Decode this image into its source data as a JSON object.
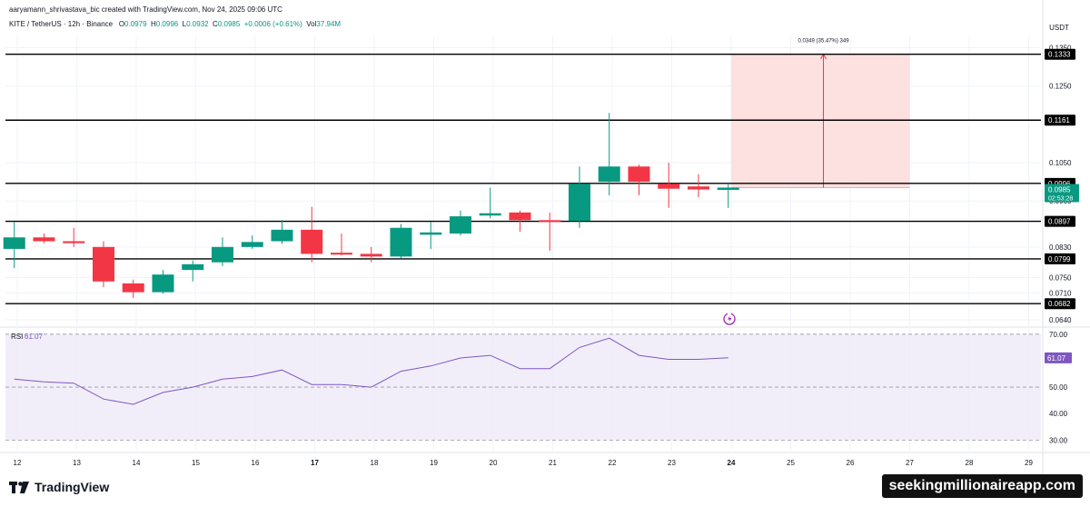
{
  "header": {
    "creator": "aaryamann_shrivastava_bic created with TradingView.com, Nov 24, 2025 09:06 UTC",
    "symbol": "KITE / TetherUS · 12h · Binance",
    "o_label": "O",
    "o_value": "0.0979",
    "h_label": "H",
    "h_value": "0.0996",
    "l_label": "L",
    "l_value": "0.0932",
    "c_label": "C",
    "c_value": "0.0985",
    "change": "+0.0006 (+0.61%)",
    "vol_label": "Vol",
    "vol_value": "37.94M"
  },
  "currency": "USDT",
  "branding": {
    "logo_text": "TradingView",
    "watermark": "seekingmillionaireapp.com"
  },
  "colors": {
    "up": "#089981",
    "down": "#f23645",
    "rsi": "#7e57c2",
    "projection": "#fde0e0"
  },
  "chart_data": {
    "type": "candlestick",
    "price_axis_ticks": [
      "0.1350",
      "0.1250",
      "0.1050",
      "0.0950",
      "0.0830",
      "0.0750",
      "0.0710",
      "0.0640"
    ],
    "price_axis_tick_values": [
      0.135,
      0.125,
      0.105,
      0.095,
      0.083,
      0.075,
      0.071,
      0.064
    ],
    "ylim": [
      0.0628,
      0.1375
    ],
    "x_tick_labels": [
      "12",
      "13",
      "14",
      "15",
      "16",
      "17",
      "18",
      "19",
      "20",
      "21",
      "22",
      "23",
      "24",
      "25",
      "26",
      "27",
      "28",
      "29"
    ],
    "bold_x_ticks": [
      "17",
      "24"
    ],
    "candles": [
      {
        "day": 11.95,
        "o": 0.0825,
        "h": 0.0895,
        "l": 0.0775,
        "c": 0.0855
      },
      {
        "day": 12.45,
        "o": 0.0855,
        "h": 0.0865,
        "l": 0.084,
        "c": 0.0845
      },
      {
        "day": 12.95,
        "o": 0.0845,
        "h": 0.088,
        "l": 0.083,
        "c": 0.084
      },
      {
        "day": 13.45,
        "o": 0.083,
        "h": 0.0845,
        "l": 0.0725,
        "c": 0.074
      },
      {
        "day": 13.95,
        "o": 0.0735,
        "h": 0.0745,
        "l": 0.0697,
        "c": 0.0712
      },
      {
        "day": 14.45,
        "o": 0.0712,
        "h": 0.077,
        "l": 0.0708,
        "c": 0.0758
      },
      {
        "day": 14.95,
        "o": 0.077,
        "h": 0.0795,
        "l": 0.074,
        "c": 0.0785
      },
      {
        "day": 15.45,
        "o": 0.079,
        "h": 0.0855,
        "l": 0.078,
        "c": 0.083
      },
      {
        "day": 15.95,
        "o": 0.083,
        "h": 0.086,
        "l": 0.0825,
        "c": 0.0843
      },
      {
        "day": 16.45,
        "o": 0.0845,
        "h": 0.09,
        "l": 0.0838,
        "c": 0.0875
      },
      {
        "day": 16.95,
        "o": 0.0875,
        "h": 0.0935,
        "l": 0.079,
        "c": 0.0812
      },
      {
        "day": 17.45,
        "o": 0.0815,
        "h": 0.0865,
        "l": 0.0808,
        "c": 0.081
      },
      {
        "day": 17.95,
        "o": 0.0812,
        "h": 0.083,
        "l": 0.079,
        "c": 0.0805
      },
      {
        "day": 18.45,
        "o": 0.0805,
        "h": 0.089,
        "l": 0.08,
        "c": 0.088
      },
      {
        "day": 18.95,
        "o": 0.0862,
        "h": 0.0895,
        "l": 0.0825,
        "c": 0.0868
      },
      {
        "day": 19.45,
        "o": 0.0865,
        "h": 0.0925,
        "l": 0.086,
        "c": 0.091
      },
      {
        "day": 19.95,
        "o": 0.0912,
        "h": 0.0985,
        "l": 0.0905,
        "c": 0.0918
      },
      {
        "day": 20.45,
        "o": 0.092,
        "h": 0.0925,
        "l": 0.087,
        "c": 0.09
      },
      {
        "day": 20.95,
        "o": 0.09,
        "h": 0.092,
        "l": 0.082,
        "c": 0.0898
      },
      {
        "day": 21.45,
        "o": 0.0898,
        "h": 0.104,
        "l": 0.088,
        "c": 0.0995
      },
      {
        "day": 21.95,
        "o": 0.1,
        "h": 0.118,
        "l": 0.0965,
        "c": 0.104
      },
      {
        "day": 22.45,
        "o": 0.104,
        "h": 0.1045,
        "l": 0.0965,
        "c": 0.1
      },
      {
        "day": 22.95,
        "o": 0.0995,
        "h": 0.105,
        "l": 0.0932,
        "c": 0.0982
      },
      {
        "day": 23.45,
        "o": 0.0988,
        "h": 0.102,
        "l": 0.096,
        "c": 0.098
      },
      {
        "day": 23.95,
        "o": 0.0979,
        "h": 0.0996,
        "l": 0.0932,
        "c": 0.0985
      }
    ],
    "horizontal_levels": [
      {
        "label": "0.1333",
        "value": 0.1333
      },
      {
        "label": "0.1161",
        "value": 0.1161
      },
      {
        "label": "0.0996",
        "value": 0.0996
      },
      {
        "label": "0.0897",
        "value": 0.0897
      },
      {
        "label": "0.0799",
        "value": 0.0799
      },
      {
        "label": "0.0682",
        "value": 0.0682
      }
    ],
    "last_price": {
      "label": "0.0985",
      "value": 0.0985,
      "countdown": "02:53:28"
    },
    "projection": {
      "start_day": 24.0,
      "end_day": 27.0,
      "from": 0.0985,
      "to": 0.1333,
      "arrow_day": 25.55,
      "label": "0.0349 (35.47%) 349"
    },
    "rsi": {
      "label": "RSI",
      "value_label": "61.07",
      "value": 61.07,
      "ylim": [
        26,
        72
      ],
      "tick_labels": [
        "70.00",
        "50.00",
        "40.00",
        "30.00"
      ],
      "tick_values": [
        70,
        50,
        40,
        30
      ],
      "bands": [
        70,
        50,
        30
      ],
      "values": [
        53,
        52,
        51.5,
        45.5,
        43.5,
        48,
        50,
        53,
        54,
        56.5,
        51,
        51,
        50,
        56,
        58,
        61,
        62,
        57,
        57,
        65,
        68.5,
        62,
        60.5,
        60.5,
        61.07
      ]
    }
  }
}
